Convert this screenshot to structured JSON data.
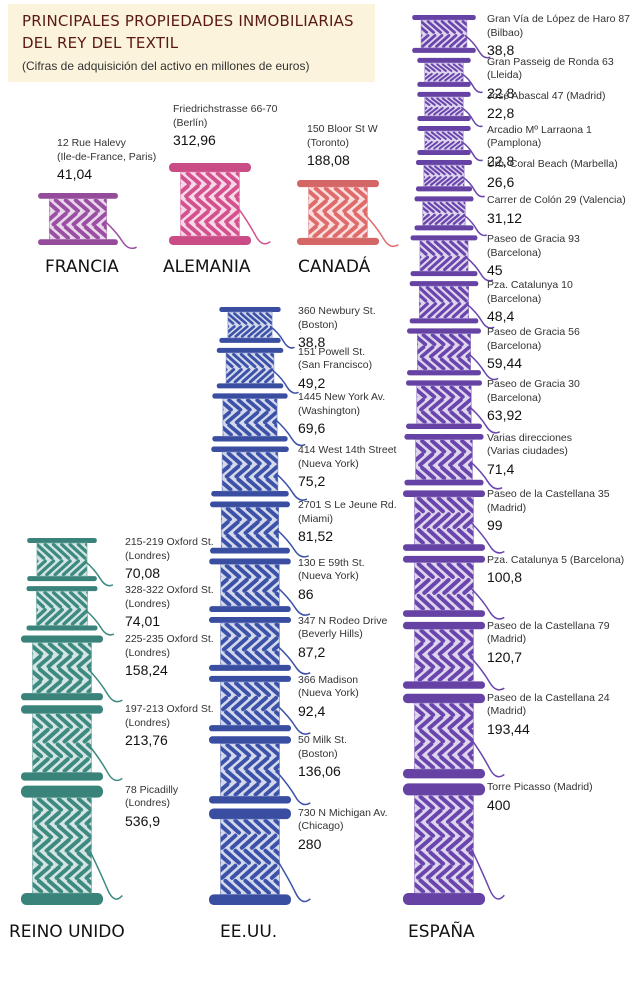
{
  "title_line1": "PRINCIPALES PROPIEDADES INMOBILIARIAS",
  "title_line2": "DEL REY DEL TEXTIL",
  "subtitle": "(Cifras de adquisición del activo en millones de euros)",
  "colors": {
    "francia": "#9b4fa2",
    "alemania": "#d4508e",
    "canada": "#e06b6b",
    "reino_unido": "#3d8a80",
    "eeuu": "#3c52a8",
    "espana": "#6a45ad"
  },
  "chart_data": {
    "type": "pictogram",
    "unit": "millones de euros",
    "groups": [
      {
        "country": "FRANCIA",
        "items": [
          {
            "address": [
              "12 Rue Halevy",
              "(Ile-de-France, Paris)"
            ],
            "value": 41.04,
            "value_label": "41,04"
          }
        ]
      },
      {
        "country": "ALEMANIA",
        "items": [
          {
            "address": [
              "Friedrichstrasse 66-70",
              "(Berlín)"
            ],
            "value": 312.96,
            "value_label": "312,96"
          }
        ]
      },
      {
        "country": "CANADÁ",
        "items": [
          {
            "address": [
              "150 Bloor St W",
              "(Toronto)"
            ],
            "value": 188.08,
            "value_label": "188,08"
          }
        ]
      },
      {
        "country": "REINO UNIDO",
        "items": [
          {
            "address": [
              "215-219 Oxford St.",
              "(Londres)"
            ],
            "value": 70.08,
            "value_label": "70,08"
          },
          {
            "address": [
              "328-322 Oxford St.",
              "(Londres)"
            ],
            "value": 74.01,
            "value_label": "74,01"
          },
          {
            "address": [
              "225-235 Oxford St.",
              "(Londres)"
            ],
            "value": 158.24,
            "value_label": "158,24"
          },
          {
            "address": [
              "197-213 Oxford St.",
              "(Londres)"
            ],
            "value": 213.76,
            "value_label": "213,76"
          },
          {
            "address": [
              "78 Picadilly",
              "(Londres)"
            ],
            "value": 536.9,
            "value_label": "536,9"
          }
        ]
      },
      {
        "country": "EE.UU.",
        "items": [
          {
            "address": [
              "360 Newbury St.",
              "(Boston)"
            ],
            "value": 38.8,
            "value_label": "38,8"
          },
          {
            "address": [
              "151 Powell St.",
              "(San Francisco)"
            ],
            "value": 49.2,
            "value_label": "49,2"
          },
          {
            "address": [
              "1445 New York Av.",
              "(Washington)"
            ],
            "value": 69.6,
            "value_label": "69,6"
          },
          {
            "address": [
              "414 West 14th Street",
              "(Nueva York)"
            ],
            "value": 75.2,
            "value_label": "75,2"
          },
          {
            "address": [
              "2701 S Le Jeune Rd.",
              "(Miami)"
            ],
            "value": 81.52,
            "value_label": "81,52"
          },
          {
            "address": [
              "130 E 59th St.",
              "(Nueva York)"
            ],
            "value": 86,
            "value_label": "86"
          },
          {
            "address": [
              "347 N Rodeo Drive",
              "(Beverly Hills)"
            ],
            "value": 87.2,
            "value_label": "87,2"
          },
          {
            "address": [
              "366 Madison",
              "(Nueva York)"
            ],
            "value": 92.4,
            "value_label": "92,4"
          },
          {
            "address": [
              "50 Milk St.",
              "(Boston)"
            ],
            "value": 136.06,
            "value_label": "136,06"
          },
          {
            "address": [
              "730 N Michigan Av.",
              "(Chicago)"
            ],
            "value": 280,
            "value_label": "280"
          }
        ]
      },
      {
        "country": "ESPAÑA",
        "items": [
          {
            "address": [
              "Gran Vía de López de Haro 87",
              "(Bilbao)"
            ],
            "value": 38.8,
            "value_label": "38,8"
          },
          {
            "address": [
              "Gran Passeig de Ronda 63",
              "(Lleida)"
            ],
            "value": 22.8,
            "value_label": "22,8"
          },
          {
            "address": [
              "José Abascal 47 (Madrid)"
            ],
            "value": 22.8,
            "value_label": "22,8"
          },
          {
            "address": [
              "Arcadio Mº Larraona 1",
              "(Pamplona)"
            ],
            "value": 22.8,
            "value_label": "22,8"
          },
          {
            "address": [
              "Urb. Coral Beach (Marbella)"
            ],
            "value": 26.6,
            "value_label": "26,6"
          },
          {
            "address": [
              "Carrer de Colón 29 (Valencia)"
            ],
            "value": 31.12,
            "value_label": "31,12"
          },
          {
            "address": [
              "Paseo de Gracia 93",
              "(Barcelona)"
            ],
            "value": 45,
            "value_label": "45"
          },
          {
            "address": [
              "Pza. Catalunya 10",
              "(Barcelona)"
            ],
            "value": 48.4,
            "value_label": "48,4"
          },
          {
            "address": [
              "Paseo de Gracia 56",
              "(Barcelona)"
            ],
            "value": 59.44,
            "value_label": "59,44"
          },
          {
            "address": [
              "Paseo de Gracia 30",
              "(Barcelona)"
            ],
            "value": 63.92,
            "value_label": "63,92"
          },
          {
            "address": [
              "Varias direcciones",
              "(Varias ciudades)"
            ],
            "value": 71.4,
            "value_label": "71,4"
          },
          {
            "address": [
              "Paseo de la Castellana 35",
              "(Madrid)"
            ],
            "value": 99,
            "value_label": "99"
          },
          {
            "address": [
              "Pza. Catalunya 5 (Barcelona)"
            ],
            "value": 100.8,
            "value_label": "100,8"
          },
          {
            "address": [
              "Paseo de la Castellana 79",
              "(Madrid)"
            ],
            "value": 120.7,
            "value_label": "120,7"
          },
          {
            "address": [
              "Paseo de la Castellana 24",
              "(Madrid)"
            ],
            "value": 193.44,
            "value_label": "193,44"
          },
          {
            "address": [
              "Torre Picasso (Madrid)"
            ],
            "value": 400,
            "value_label": "400"
          }
        ]
      }
    ]
  }
}
